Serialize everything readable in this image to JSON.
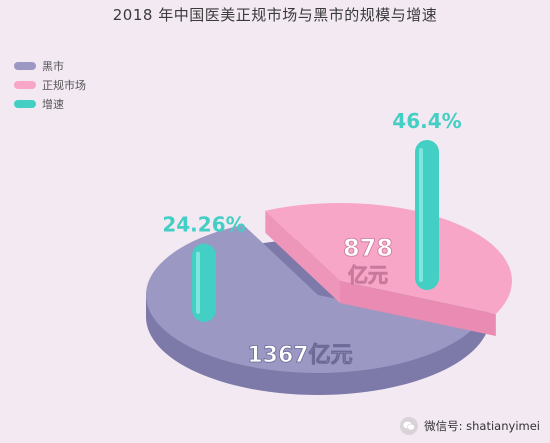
{
  "colors": {
    "black_market": "#9b98c4",
    "regular_market": "#f7a6c8",
    "growth": "#43cfc4",
    "background": "#f3e9f3"
  },
  "chart_data": {
    "type": "pie",
    "title": "2018 年中国医美正规市场与黑市的规模与增速",
    "legend_position": "left-top",
    "slices": [
      {
        "name": "黑市",
        "value": 1367,
        "value_label": "1367亿元",
        "growth_label": "24.26%",
        "growth": 24.26
      },
      {
        "name": "正规市场",
        "value": 878,
        "value_label": "878亿元",
        "growth_label": "46.4%",
        "growth": 46.4
      }
    ],
    "legend": [
      "黑市",
      "正规市场",
      "增速"
    ]
  },
  "watermark": {
    "icon": "wechat-icon",
    "text": "微信号: shatianyimei"
  }
}
